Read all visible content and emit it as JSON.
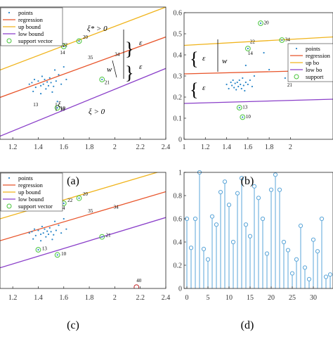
{
  "colors": {
    "regression": "#e8552b",
    "upper": "#f0b41c",
    "lower": "#8a3fc9",
    "points": "#2a86c8",
    "support": "#49c43b",
    "outlier": "#c0282a",
    "stem": "#5aa5d8"
  },
  "legend_labels": {
    "full": [
      "points",
      "regression",
      "up bound",
      "low bound",
      "support vector"
    ],
    "b": [
      "points",
      "regression",
      "up bo",
      "low bo",
      "support"
    ]
  },
  "annotations": {
    "xi_star": "ξ* > 0",
    "xi": "ξ > 0",
    "xi10": "ξ",
    "xi10_sub": "10",
    "eps": "ε",
    "w": "w"
  },
  "chart_data": [
    {
      "panel": "a",
      "caption": "(a)",
      "type": "scatter",
      "xlim": [
        1.1,
        2.4
      ],
      "ylim": [
        0.08,
        0.5
      ],
      "xticks": [
        "1.2",
        "1.4",
        "1.6",
        "1.8",
        "2",
        "2.2",
        "2.4"
      ],
      "legend_position": "top-left",
      "lines": {
        "regression": [
          [
            1.1,
            0.213
          ],
          [
            2.4,
            0.405
          ]
        ],
        "upper": [
          [
            1.1,
            0.3
          ],
          [
            2.4,
            0.5
          ]
        ],
        "lower": [
          [
            1.1,
            0.09
          ],
          [
            2.4,
            0.305
          ]
        ]
      },
      "points": [
        [
          1.33,
          0.255
        ],
        [
          1.35,
          0.26
        ],
        [
          1.37,
          0.27
        ],
        [
          1.38,
          0.245
        ],
        [
          1.4,
          0.265
        ],
        [
          1.42,
          0.25
        ],
        [
          1.43,
          0.28
        ],
        [
          1.44,
          0.255
        ],
        [
          1.45,
          0.27
        ],
        [
          1.46,
          0.24
        ],
        [
          1.47,
          0.262
        ],
        [
          1.48,
          0.25
        ],
        [
          1.49,
          0.275
        ],
        [
          1.5,
          0.26
        ],
        [
          1.51,
          0.23
        ],
        [
          1.52,
          0.248
        ],
        [
          1.53,
          0.3
        ],
        [
          1.54,
          0.265
        ],
        [
          1.55,
          0.2
        ],
        [
          1.56,
          0.285
        ],
        [
          1.58,
          0.255
        ],
        [
          1.62,
          0.27
        ],
        [
          1.36,
          0.232
        ],
        [
          1.42,
          0.225
        ],
        [
          1.6,
          0.31
        ]
      ],
      "support_vectors": [
        [
          1.55,
          0.18
        ],
        [
          1.6,
          0.375
        ],
        [
          1.72,
          0.392
        ],
        [
          1.9,
          0.27
        ]
      ],
      "point_labels": [
        {
          "label": "20",
          "x": 1.75,
          "y": 0.4
        },
        {
          "label": "22",
          "x": 1.59,
          "y": 0.375
        },
        {
          "label": "14",
          "x": 1.57,
          "y": 0.35
        },
        {
          "label": "35",
          "x": 1.79,
          "y": 0.335
        },
        {
          "label": "34",
          "x": 2.0,
          "y": 0.345
        },
        {
          "label": "21",
          "x": 1.92,
          "y": 0.255
        },
        {
          "label": "13",
          "x": 1.36,
          "y": 0.185
        },
        {
          "label": "10",
          "x": 1.57,
          "y": 0.17
        }
      ]
    },
    {
      "panel": "b",
      "caption": "(b)",
      "type": "scatter",
      "xlim": [
        1,
        2.4
      ],
      "ylim": [
        0,
        0.6
      ],
      "xticks": [
        "1",
        "1.2",
        "1.4",
        "1.6",
        "1.8",
        "2"
      ],
      "yticks": [
        "0",
        "0.1",
        "0.2",
        "0.3",
        "0.4",
        "0.5",
        "0.6"
      ],
      "legend_position": "right",
      "lines": {
        "regression": [
          [
            1,
            0.31
          ],
          [
            2.4,
            0.328
          ]
        ],
        "upper": [
          [
            1,
            0.445
          ],
          [
            2.4,
            0.485
          ]
        ],
        "lower": [
          [
            1,
            0.17
          ],
          [
            2.4,
            0.19
          ]
        ]
      },
      "points": [
        [
          1.4,
          0.26
        ],
        [
          1.42,
          0.24
        ],
        [
          1.44,
          0.27
        ],
        [
          1.45,
          0.255
        ],
        [
          1.46,
          0.28
        ],
        [
          1.47,
          0.245
        ],
        [
          1.48,
          0.265
        ],
        [
          1.49,
          0.235
        ],
        [
          1.5,
          0.27
        ],
        [
          1.51,
          0.25
        ],
        [
          1.52,
          0.28
        ],
        [
          1.53,
          0.26
        ],
        [
          1.54,
          0.24
        ],
        [
          1.55,
          0.29
        ],
        [
          1.56,
          0.255
        ],
        [
          1.57,
          0.23
        ],
        [
          1.58,
          0.27
        ],
        [
          1.6,
          0.26
        ],
        [
          1.62,
          0.28
        ],
        [
          1.64,
          0.25
        ],
        [
          1.66,
          0.3
        ],
        [
          1.58,
          0.35
        ],
        [
          1.75,
          0.41
        ],
        [
          1.95,
          0.29
        ],
        [
          1.8,
          0.33
        ]
      ],
      "support_vectors": [
        [
          1.52,
          0.15
        ],
        [
          1.55,
          0.105
        ],
        [
          1.6,
          0.43
        ],
        [
          1.72,
          0.55
        ],
        [
          1.92,
          0.47
        ]
      ],
      "point_labels": [
        {
          "label": "22",
          "x": 1.62,
          "y": 0.455
        },
        {
          "label": "14",
          "x": 1.6,
          "y": 0.4
        },
        {
          "label": "20",
          "x": 1.75,
          "y": 0.545
        },
        {
          "label": "34",
          "x": 1.95,
          "y": 0.465
        },
        {
          "label": "13",
          "x": 1.55,
          "y": 0.145
        },
        {
          "label": "10",
          "x": 1.58,
          "y": 0.1
        },
        {
          "label": "21",
          "x": 1.97,
          "y": 0.25
        }
      ]
    },
    {
      "panel": "c",
      "caption": "(c)",
      "type": "scatter",
      "xlim": [
        1.1,
        2.4
      ],
      "ylim": [
        0.05,
        0.5
      ],
      "xticks": [
        "1.2",
        "1.4",
        "1.6",
        "1.8",
        "2",
        "2.2",
        "2.4"
      ],
      "legend_position": "top-left",
      "lines": {
        "regression": [
          [
            1.1,
            0.235
          ],
          [
            2.4,
            0.425
          ]
        ],
        "upper": [
          [
            1.1,
            0.32
          ],
          [
            2.4,
            0.51
          ]
        ],
        "lower": [
          [
            1.1,
            0.13
          ],
          [
            2.4,
            0.325
          ]
        ]
      },
      "points": [
        [
          1.33,
          0.265
        ],
        [
          1.35,
          0.27
        ],
        [
          1.37,
          0.28
        ],
        [
          1.38,
          0.255
        ],
        [
          1.4,
          0.275
        ],
        [
          1.42,
          0.26
        ],
        [
          1.43,
          0.29
        ],
        [
          1.44,
          0.265
        ],
        [
          1.45,
          0.28
        ],
        [
          1.46,
          0.25
        ],
        [
          1.47,
          0.272
        ],
        [
          1.48,
          0.26
        ],
        [
          1.49,
          0.285
        ],
        [
          1.5,
          0.27
        ],
        [
          1.51,
          0.24
        ],
        [
          1.52,
          0.258
        ],
        [
          1.53,
          0.31
        ],
        [
          1.54,
          0.275
        ],
        [
          1.56,
          0.295
        ],
        [
          1.58,
          0.265
        ],
        [
          1.62,
          0.28
        ],
        [
          1.36,
          0.242
        ],
        [
          1.42,
          0.235
        ],
        [
          1.6,
          0.32
        ]
      ],
      "support_vectors": [
        [
          1.4,
          0.2
        ],
        [
          1.55,
          0.18
        ],
        [
          1.6,
          0.38
        ],
        [
          1.72,
          0.4
        ],
        [
          1.9,
          0.25
        ]
      ],
      "outliers": [
        [
          2.17,
          0.055
        ]
      ],
      "point_labels": [
        {
          "label": "20",
          "x": 1.75,
          "y": 0.41
        },
        {
          "label": "22",
          "x": 1.63,
          "y": 0.385
        },
        {
          "label": "14",
          "x": 1.57,
          "y": 0.355
        },
        {
          "label": "35",
          "x": 1.79,
          "y": 0.345
        },
        {
          "label": "34",
          "x": 1.99,
          "y": 0.36
        },
        {
          "label": "21",
          "x": 1.93,
          "y": 0.25
        },
        {
          "label": "13",
          "x": 1.43,
          "y": 0.198
        },
        {
          "label": "10",
          "x": 1.58,
          "y": 0.178
        },
        {
          "label": "40",
          "x": 2.17,
          "y": 0.075
        }
      ]
    },
    {
      "panel": "d",
      "caption": "(d)",
      "type": "bar",
      "style": "stem",
      "xlim": [
        0,
        34
      ],
      "ylim": [
        0,
        1
      ],
      "xticks": [
        "0",
        "5",
        "10",
        "15",
        "20",
        "25",
        "30"
      ],
      "yticks": [
        "0",
        "0.2",
        "0.4",
        "0.6",
        "0.8",
        "1"
      ],
      "x": [
        0,
        1,
        2,
        3,
        4,
        5,
        6,
        7,
        8,
        9,
        10,
        11,
        12,
        13,
        14,
        15,
        16,
        17,
        18,
        19,
        20,
        21,
        22,
        23,
        24,
        25,
        26,
        27,
        28,
        29,
        30,
        31,
        32,
        33,
        34
      ],
      "values": [
        0.6,
        0.35,
        0.6,
        1.0,
        0.34,
        0.25,
        0.62,
        0.55,
        0.83,
        0.92,
        0.72,
        0.4,
        0.82,
        0.95,
        0.55,
        0.45,
        0.88,
        0.78,
        0.6,
        0.3,
        0.85,
        0.98,
        0.85,
        0.4,
        0.33,
        0.13,
        0.25,
        0.54,
        0.18,
        0.08,
        0.42,
        0.32,
        0.6,
        0.1,
        0.12
      ]
    }
  ]
}
